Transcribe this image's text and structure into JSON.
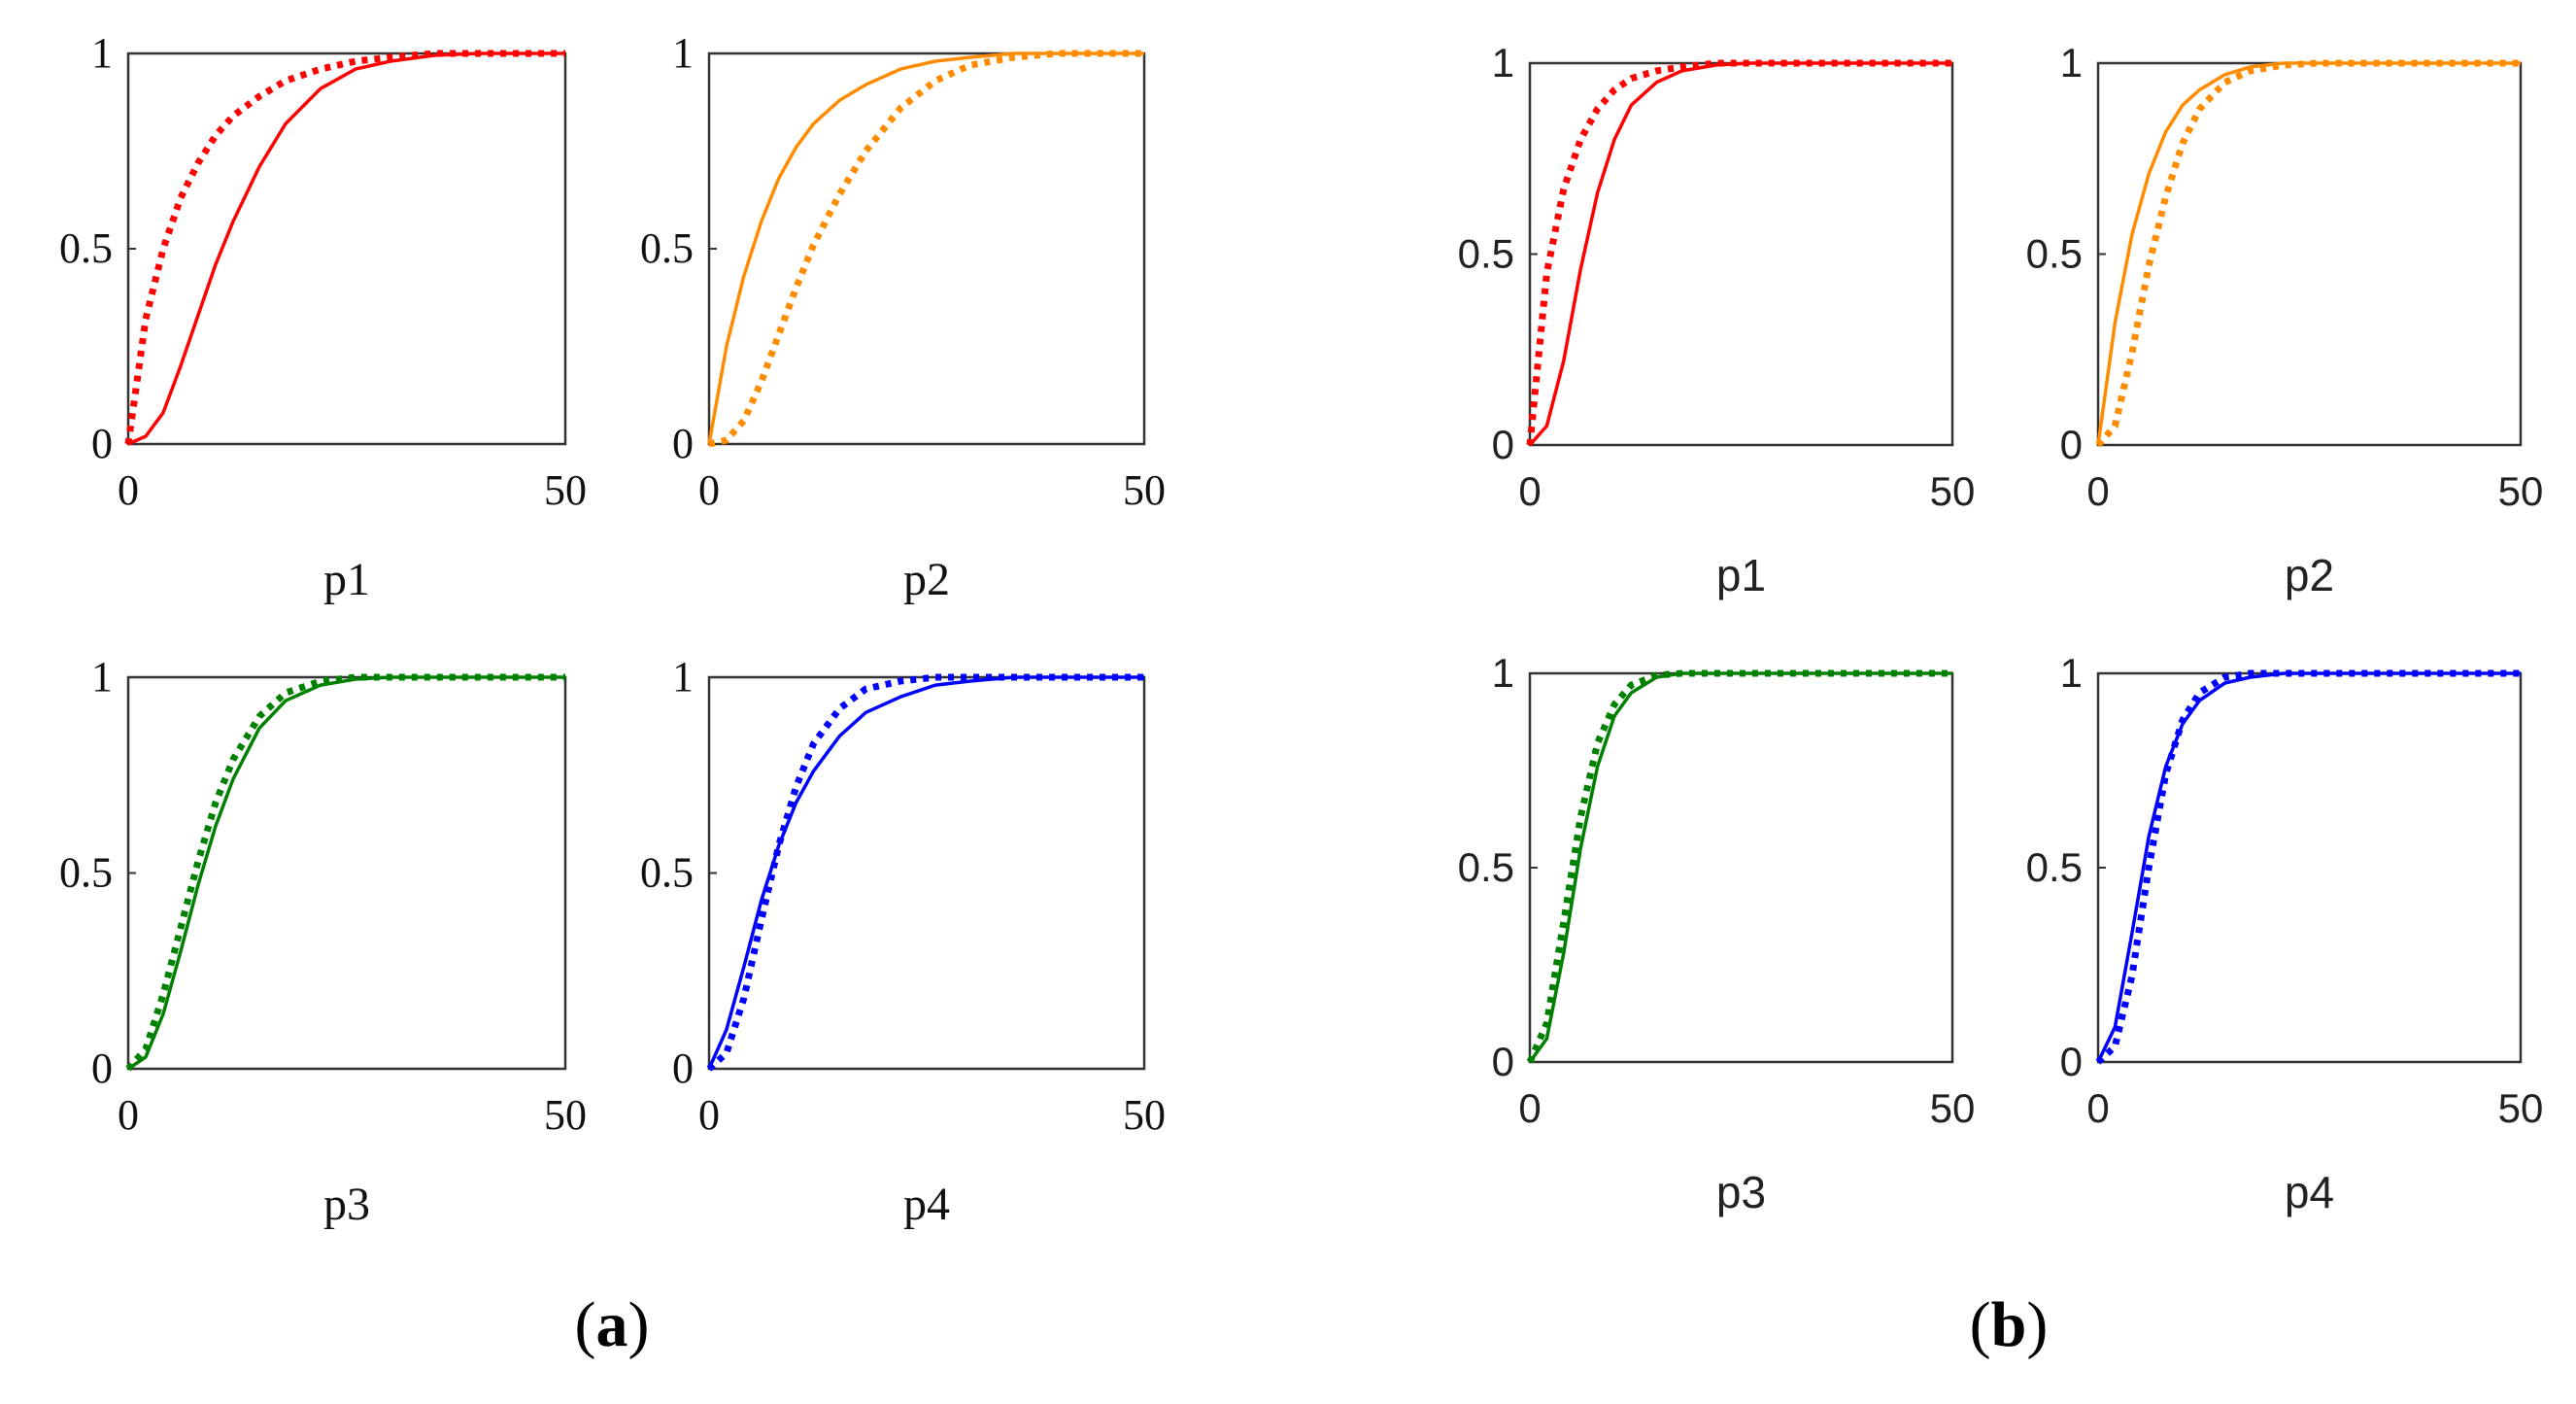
{
  "figure": {
    "labels": [
      {
        "open": "(",
        "letter": "a",
        "close": ")"
      },
      {
        "open": "(",
        "letter": "b",
        "close": ")"
      }
    ]
  },
  "chart_data": [
    {
      "group": "a",
      "type": "line",
      "xlabel": "p1",
      "xlim": [
        0,
        50
      ],
      "ylim": [
        0,
        1
      ],
      "xticks": [
        "0",
        "50"
      ],
      "yticks": [
        "0",
        "0.5",
        "1"
      ],
      "color": "#ff0000",
      "series": [
        {
          "style": "solid",
          "x": [
            0,
            2,
            4,
            6,
            8,
            10,
            12,
            15,
            18,
            22,
            26,
            30,
            35,
            40,
            50
          ],
          "y": [
            0,
            0.02,
            0.08,
            0.2,
            0.33,
            0.46,
            0.57,
            0.71,
            0.82,
            0.91,
            0.96,
            0.98,
            0.995,
            1,
            1
          ]
        },
        {
          "style": "dotted",
          "x": [
            0,
            2,
            4,
            6,
            8,
            10,
            12,
            15,
            18,
            22,
            26,
            30,
            35,
            40,
            50
          ],
          "y": [
            0,
            0.32,
            0.5,
            0.63,
            0.72,
            0.79,
            0.84,
            0.89,
            0.93,
            0.96,
            0.98,
            0.99,
            1,
            1,
            1
          ]
        }
      ]
    },
    {
      "group": "a",
      "type": "line",
      "xlabel": "p2",
      "xlim": [
        0,
        50
      ],
      "ylim": [
        0,
        1
      ],
      "xticks": [
        "0",
        "50"
      ],
      "yticks": [
        "0",
        "0.5",
        "1"
      ],
      "color": "#ff8c00",
      "series": [
        {
          "style": "solid",
          "x": [
            0,
            2,
            4,
            6,
            8,
            10,
            12,
            15,
            18,
            22,
            26,
            30,
            35,
            40,
            50
          ],
          "y": [
            0,
            0.25,
            0.43,
            0.57,
            0.68,
            0.76,
            0.82,
            0.88,
            0.92,
            0.96,
            0.98,
            0.99,
            1,
            1,
            1
          ]
        },
        {
          "style": "dotted",
          "x": [
            0,
            2,
            4,
            6,
            8,
            10,
            12,
            15,
            18,
            22,
            26,
            30,
            35,
            40,
            50
          ],
          "y": [
            0,
            0.01,
            0.06,
            0.16,
            0.28,
            0.4,
            0.51,
            0.64,
            0.75,
            0.86,
            0.93,
            0.97,
            0.99,
            1,
            1
          ]
        }
      ]
    },
    {
      "group": "a",
      "type": "line",
      "xlabel": "p3",
      "xlim": [
        0,
        50
      ],
      "ylim": [
        0,
        1
      ],
      "xticks": [
        "0",
        "50"
      ],
      "yticks": [
        "0",
        "0.5",
        "1"
      ],
      "color": "#008000",
      "series": [
        {
          "style": "solid",
          "x": [
            0,
            2,
            4,
            6,
            8,
            10,
            12,
            15,
            18,
            22,
            26,
            30,
            35,
            40,
            50
          ],
          "y": [
            0,
            0.03,
            0.14,
            0.3,
            0.47,
            0.62,
            0.74,
            0.87,
            0.94,
            0.98,
            0.995,
            1,
            1,
            1,
            1
          ]
        },
        {
          "style": "dotted",
          "x": [
            0,
            2,
            4,
            6,
            8,
            10,
            12,
            15,
            18,
            22,
            26,
            30,
            35,
            40,
            50
          ],
          "y": [
            0,
            0.05,
            0.19,
            0.36,
            0.53,
            0.68,
            0.79,
            0.9,
            0.96,
            0.99,
            1,
            1,
            1,
            1,
            1
          ]
        }
      ]
    },
    {
      "group": "a",
      "type": "line",
      "xlabel": "p4",
      "xlim": [
        0,
        50
      ],
      "ylim": [
        0,
        1
      ],
      "xticks": [
        "0",
        "50"
      ],
      "yticks": [
        "0",
        "0.5",
        "1"
      ],
      "color": "#0000ff",
      "series": [
        {
          "style": "solid",
          "x": [
            0,
            2,
            4,
            6,
            8,
            10,
            12,
            15,
            18,
            22,
            26,
            30,
            35,
            40,
            50
          ],
          "y": [
            0,
            0.1,
            0.26,
            0.43,
            0.57,
            0.68,
            0.76,
            0.85,
            0.91,
            0.95,
            0.98,
            0.99,
            1,
            1,
            1
          ]
        },
        {
          "style": "dotted",
          "x": [
            0,
            2,
            4,
            6,
            8,
            10,
            12,
            15,
            18,
            22,
            26,
            30,
            35,
            40,
            50
          ],
          "y": [
            0,
            0.04,
            0.18,
            0.38,
            0.57,
            0.72,
            0.83,
            0.92,
            0.97,
            0.99,
            1,
            1,
            1,
            1,
            1
          ]
        }
      ]
    },
    {
      "group": "b",
      "type": "line",
      "xlabel": "p1",
      "xlim": [
        0,
        50
      ],
      "ylim": [
        0,
        1
      ],
      "xticks": [
        "0",
        "50"
      ],
      "yticks": [
        "0",
        "0.5",
        "1"
      ],
      "color": "#ff0000",
      "series": [
        {
          "style": "solid",
          "x": [
            0,
            2,
            4,
            6,
            8,
            10,
            12,
            15,
            18,
            22,
            26,
            30,
            40,
            50
          ],
          "y": [
            0,
            0.05,
            0.22,
            0.46,
            0.66,
            0.8,
            0.89,
            0.95,
            0.98,
            0.995,
            1,
            1,
            1,
            1
          ]
        },
        {
          "style": "dotted",
          "x": [
            0,
            2,
            4,
            6,
            8,
            10,
            12,
            15,
            18,
            22,
            26,
            30,
            40,
            50
          ],
          "y": [
            0,
            0.45,
            0.67,
            0.8,
            0.88,
            0.93,
            0.96,
            0.98,
            0.99,
            1,
            1,
            1,
            1,
            1
          ]
        }
      ]
    },
    {
      "group": "b",
      "type": "line",
      "xlabel": "p2",
      "xlim": [
        0,
        50
      ],
      "ylim": [
        0,
        1
      ],
      "xticks": [
        "0",
        "50"
      ],
      "yticks": [
        "0",
        "0.5",
        "1"
      ],
      "color": "#ff8c00",
      "series": [
        {
          "style": "solid",
          "x": [
            0,
            2,
            4,
            6,
            8,
            10,
            12,
            15,
            18,
            22,
            26,
            30,
            40,
            50
          ],
          "y": [
            0,
            0.32,
            0.55,
            0.71,
            0.82,
            0.89,
            0.93,
            0.97,
            0.99,
            1,
            1,
            1,
            1,
            1
          ]
        },
        {
          "style": "dotted",
          "x": [
            0,
            2,
            4,
            6,
            8,
            10,
            12,
            15,
            18,
            22,
            26,
            30,
            40,
            50
          ],
          "y": [
            0,
            0.05,
            0.24,
            0.47,
            0.65,
            0.79,
            0.88,
            0.95,
            0.98,
            0.995,
            1,
            1,
            1,
            1
          ]
        }
      ]
    },
    {
      "group": "b",
      "type": "line",
      "xlabel": "p3",
      "xlim": [
        0,
        50
      ],
      "ylim": [
        0,
        1
      ],
      "xticks": [
        "0",
        "50"
      ],
      "yticks": [
        "0",
        "0.5",
        "1"
      ],
      "color": "#008000",
      "series": [
        {
          "style": "solid",
          "x": [
            0,
            2,
            4,
            6,
            8,
            10,
            12,
            15,
            18,
            22,
            26,
            30,
            40,
            50
          ],
          "y": [
            0,
            0.06,
            0.28,
            0.55,
            0.76,
            0.89,
            0.95,
            0.99,
            1,
            1,
            1,
            1,
            1,
            1
          ]
        },
        {
          "style": "dotted",
          "x": [
            0,
            2,
            4,
            6,
            8,
            10,
            12,
            15,
            18,
            22,
            26,
            30,
            40,
            50
          ],
          "y": [
            0,
            0.1,
            0.36,
            0.63,
            0.82,
            0.92,
            0.97,
            0.995,
            1,
            1,
            1,
            1,
            1,
            1
          ]
        }
      ]
    },
    {
      "group": "b",
      "type": "line",
      "xlabel": "p4",
      "xlim": [
        0,
        50
      ],
      "ylim": [
        0,
        1
      ],
      "xticks": [
        "0",
        "50"
      ],
      "yticks": [
        "0",
        "0.5",
        "1"
      ],
      "color": "#0000ff",
      "series": [
        {
          "style": "solid",
          "x": [
            0,
            2,
            4,
            6,
            8,
            10,
            12,
            15,
            18,
            22,
            26,
            30,
            40,
            50
          ],
          "y": [
            0,
            0.09,
            0.33,
            0.58,
            0.76,
            0.87,
            0.93,
            0.975,
            0.99,
            1,
            1,
            1,
            1,
            1
          ]
        },
        {
          "style": "dotted",
          "x": [
            0,
            2,
            4,
            6,
            8,
            10,
            12,
            15,
            18,
            22,
            26,
            30,
            40,
            50
          ],
          "y": [
            0,
            0.04,
            0.22,
            0.5,
            0.74,
            0.88,
            0.95,
            0.99,
            1,
            1,
            1,
            1,
            1,
            1
          ]
        }
      ]
    }
  ]
}
